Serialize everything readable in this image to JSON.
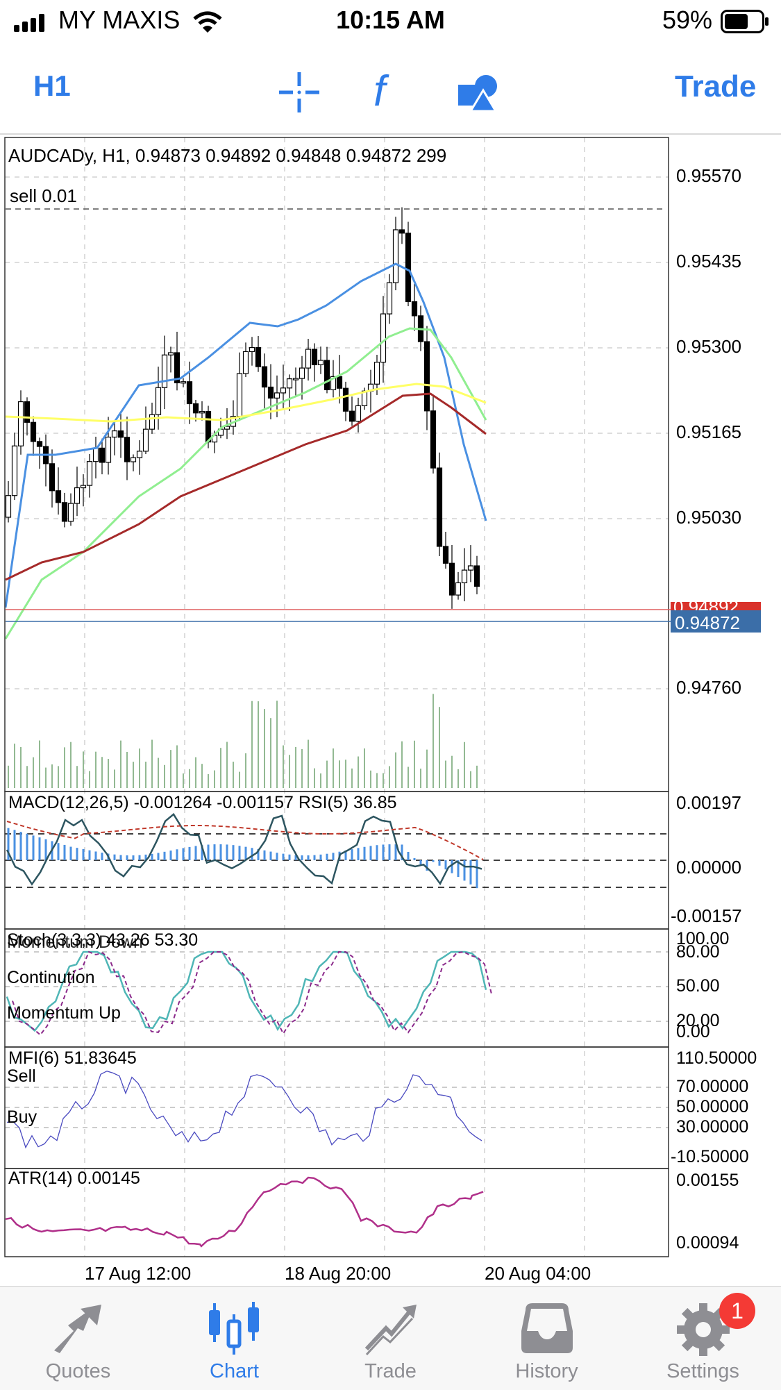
{
  "status": {
    "carrier": "MY MAXIS",
    "time": "10:15 AM",
    "battery": "59%"
  },
  "toolbar": {
    "timeframe": "H1",
    "trade": "Trade"
  },
  "chart": {
    "header": "AUDCADy, H1, 0.94873 0.94892 0.94848 0.94872 299",
    "order_label": "sell 0.01",
    "price_ticks": [
      "0.95570",
      "0.95435",
      "0.95300",
      "0.95165",
      "0.95030",
      "0.94760"
    ],
    "ask_price": "0.94892",
    "bid_price": "0.94872",
    "time_labels": [
      "17 Aug 12:00",
      "18 Aug 20:00",
      "20 Aug 04:00"
    ],
    "colors": {
      "bull": "#ffffff",
      "bear": "#000000",
      "ema_fast": "#4a90e2",
      "ema_mid": "#90ee90",
      "ema_slow": "#ffff66",
      "ema_long": "#a52a2a",
      "ask_line": "#e06060",
      "bid_line": "#3b6ea8"
    }
  },
  "macd": {
    "header": "MACD(12,26,5) -0.001264 -0.001157 RSI(5) 36.85",
    "ticks": [
      "0.00197",
      "0.00000",
      "-0.00157"
    ]
  },
  "stoch": {
    "header": "Stoch(3,3,3) 43.26 53.30",
    "overlay": "Momentum Down",
    "continuation": "Continution",
    "momentum_up": "Momentum Up",
    "ticks": [
      "100.00",
      "80.00",
      "50.00",
      "20.00",
      "0.00"
    ]
  },
  "mfi": {
    "header": "MFI(6) 51.83645",
    "sell": "Sell",
    "buy": "Buy",
    "ticks": [
      "110.50000",
      "70.00000",
      "50.00000",
      "30.00000",
      "-10.50000"
    ]
  },
  "atr": {
    "header": "ATR(14) 0.00145",
    "ticks": [
      "0.00155",
      "0.00094"
    ]
  },
  "tabs": [
    {
      "label": "Quotes",
      "icon": "quotes-icon"
    },
    {
      "label": "Chart",
      "icon": "chart-icon"
    },
    {
      "label": "Trade",
      "icon": "trade-icon"
    },
    {
      "label": "History",
      "icon": "history-icon"
    },
    {
      "label": "Settings",
      "icon": "settings-icon"
    }
  ],
  "settings_badge": "1"
}
